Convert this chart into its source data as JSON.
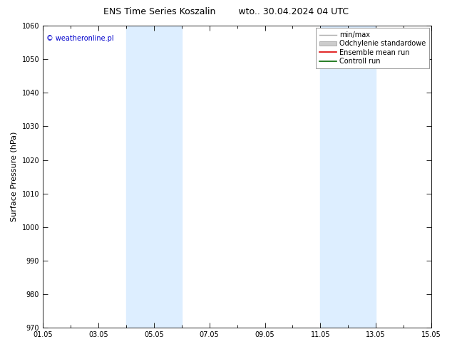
{
  "title": "ENS Time Series Koszalin",
  "title_right": "wto.. 30.04.2024 04 UTC",
  "ylabel": "Surface Pressure (hPa)",
  "watermark": "© weatheronline.pl",
  "ylim": [
    970,
    1060
  ],
  "yticks": [
    970,
    980,
    990,
    1000,
    1010,
    1020,
    1030,
    1040,
    1050,
    1060
  ],
  "xlim": [
    0,
    14
  ],
  "xtick_labels": [
    "01.05",
    "03.05",
    "05.05",
    "07.05",
    "09.05",
    "11.05",
    "13.05",
    "15.05"
  ],
  "xtick_positions": [
    0,
    2,
    4,
    6,
    8,
    10,
    12,
    14
  ],
  "shaded_regions": [
    {
      "x_start": 3.0,
      "x_end": 5.0
    },
    {
      "x_start": 10.0,
      "x_end": 12.0
    }
  ],
  "shaded_color": "#ddeeff",
  "background_color": "#ffffff",
  "plot_bg_color": "#ffffff",
  "legend_items": [
    {
      "label": "min/max",
      "color": "#aaaaaa",
      "linestyle": "-",
      "linewidth": 1.0
    },
    {
      "label": "Odchylenie standardowe",
      "color": "#cccccc",
      "linestyle": "-",
      "linewidth": 5
    },
    {
      "label": "Ensemble mean run",
      "color": "#dd0000",
      "linestyle": "-",
      "linewidth": 1.2
    },
    {
      "label": "Controll run",
      "color": "#006600",
      "linestyle": "-",
      "linewidth": 1.2
    }
  ],
  "title_fontsize": 9,
  "tick_fontsize": 7,
  "watermark_fontsize": 7,
  "ylabel_fontsize": 8,
  "legend_fontsize": 7
}
